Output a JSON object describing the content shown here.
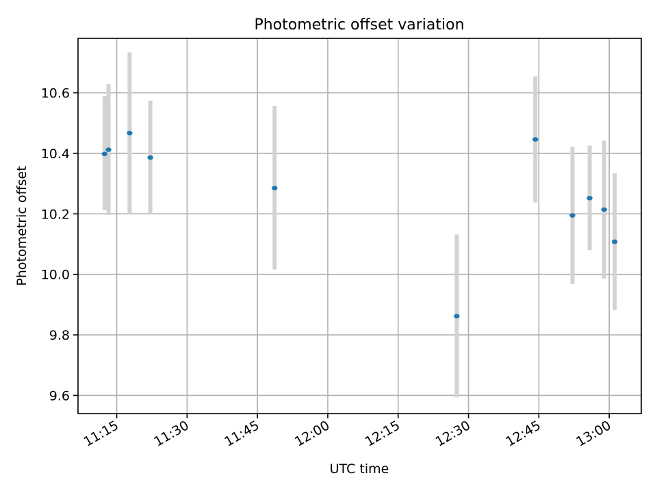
{
  "chart_data": {
    "type": "scatter",
    "title": "Photometric offset variation",
    "xlabel": "UTC time",
    "ylabel": "Photometric offset",
    "x_axis_type": "time",
    "xlim": [
      "11:06:45",
      "13:06:50"
    ],
    "ylim": [
      9.54,
      10.78
    ],
    "x_ticks": [
      "11:15",
      "11:30",
      "11:45",
      "12:00",
      "12:15",
      "12:30",
      "12:45",
      "13:00"
    ],
    "y_ticks": [
      9.6,
      9.8,
      10.0,
      10.2,
      10.4,
      10.6
    ],
    "grid": true,
    "series": [
      {
        "marker_color": "#1f77b4",
        "error_bar_color": "#d3d3d3",
        "points": [
          {
            "x": "11:12:25",
            "y": 10.398,
            "ymin": 10.212,
            "ymax": 10.59
          },
          {
            "x": "11:13:15",
            "y": 10.412,
            "ymin": 10.196,
            "ymax": 10.628
          },
          {
            "x": "11:17:45",
            "y": 10.467,
            "ymin": 10.2,
            "ymax": 10.734
          },
          {
            "x": "11:22:10",
            "y": 10.386,
            "ymin": 10.2,
            "ymax": 10.574
          },
          {
            "x": "11:48:40",
            "y": 10.285,
            "ymin": 10.016,
            "ymax": 10.556
          },
          {
            "x": "12:27:30",
            "y": 9.862,
            "ymin": 9.594,
            "ymax": 10.132
          },
          {
            "x": "12:44:15",
            "y": 10.446,
            "ymin": 10.238,
            "ymax": 10.654
          },
          {
            "x": "12:52:10",
            "y": 10.195,
            "ymin": 9.968,
            "ymax": 10.422
          },
          {
            "x": "12:55:50",
            "y": 10.252,
            "ymin": 10.08,
            "ymax": 10.426
          },
          {
            "x": "12:58:55",
            "y": 10.214,
            "ymin": 9.986,
            "ymax": 10.442
          },
          {
            "x": "13:01:10",
            "y": 10.108,
            "ymin": 9.882,
            "ymax": 10.334
          }
        ]
      }
    ]
  }
}
